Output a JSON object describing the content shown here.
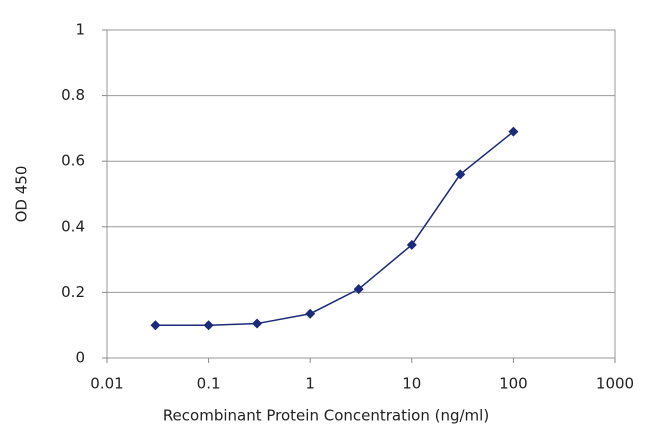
{
  "chart_data": {
    "type": "line",
    "x_label": "Recombinant Protein Concentration (ng/ml)",
    "y_label": "OD 450",
    "x": [
      0.03,
      0.1,
      0.3,
      1,
      3,
      10,
      30,
      100
    ],
    "series": [
      {
        "color": "#1c2a7a",
        "values": [
          0.1,
          0.1,
          0.105,
          0.135,
          0.21,
          0.345,
          0.56,
          0.69
        ]
      }
    ],
    "xlim": [
      0.01,
      1000
    ],
    "xticks": [
      0.01,
      0.1,
      1,
      10,
      100,
      1000
    ],
    "xscale": "log",
    "ylim": [
      0,
      1
    ],
    "yticks": [
      0,
      0.2,
      0.4,
      0.6,
      0.8,
      1
    ],
    "grid": true
  }
}
